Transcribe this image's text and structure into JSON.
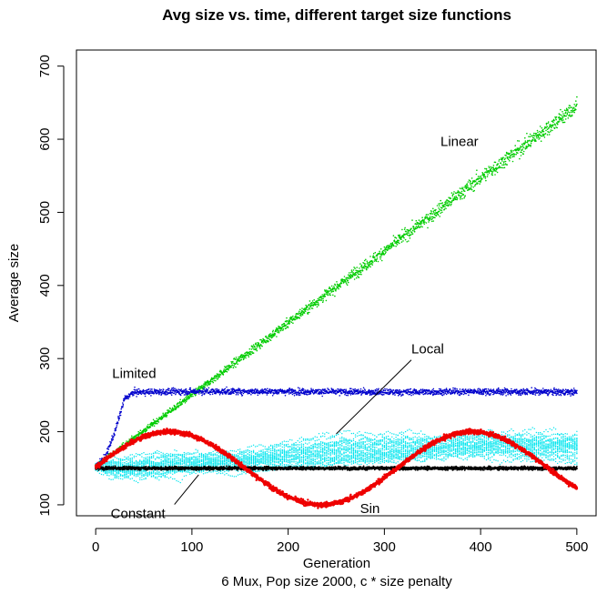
{
  "chart_data": {
    "type": "scatter",
    "title": "Avg size vs. time, different target size functions",
    "xlabel": "Generation",
    "ylabel": "Average size",
    "subtitle": "6 Mux, Pop size 2000, c * size penalty",
    "xlim": [
      -20,
      520
    ],
    "ylim": [
      85,
      722
    ],
    "xticks": [
      0,
      100,
      200,
      300,
      400,
      500
    ],
    "yticks": [
      100,
      200,
      300,
      400,
      500,
      600,
      700
    ],
    "grid": false,
    "series": [
      {
        "name": "Linear",
        "color": "#00cc00",
        "model": "linear",
        "x": [
          0,
          100,
          200,
          300,
          400,
          500
        ],
        "y": [
          153,
          250,
          349,
          447,
          547,
          645
        ]
      },
      {
        "name": "Limited",
        "color": "#0000cc",
        "model": "limited",
        "x": [
          0,
          10,
          20,
          30,
          40,
          100,
          200,
          300,
          400,
          500
        ],
        "y": [
          153,
          165,
          200,
          245,
          254,
          255,
          255,
          254,
          255,
          254
        ]
      },
      {
        "name": "Local",
        "color": "#00e5ee",
        "model": "local",
        "x": [
          0,
          50,
          100,
          150,
          200,
          250,
          300,
          350,
          400,
          450,
          500
        ],
        "y": [
          152,
          165,
          170,
          175,
          178,
          180,
          182,
          185,
          190,
          192,
          195
        ]
      },
      {
        "name": "Sin",
        "color": "#ee0000",
        "model": "sin",
        "x": [
          0,
          80,
          160,
          237,
          320,
          395,
          470,
          500
        ],
        "y": [
          152,
          200,
          152,
          100,
          150,
          200,
          152,
          122
        ]
      },
      {
        "name": "Constant",
        "color": "#000000",
        "model": "constant",
        "x": [
          0,
          100,
          200,
          300,
          400,
          500
        ],
        "y": [
          150,
          150,
          150,
          150,
          150,
          150
        ]
      }
    ],
    "annotations": [
      {
        "text": "Linear",
        "x": 378,
        "y": 597
      },
      {
        "text": "Limited",
        "x": 40,
        "y": 280
      },
      {
        "text": "Local",
        "x": 345,
        "y": 313,
        "arrow_to": [
          250,
          197
        ]
      },
      {
        "text": "Constant",
        "x": 44,
        "y": 88,
        "arrow_to": [
          107,
          141
        ]
      },
      {
        "text": "Sin",
        "x": 285,
        "y": 95
      }
    ]
  }
}
